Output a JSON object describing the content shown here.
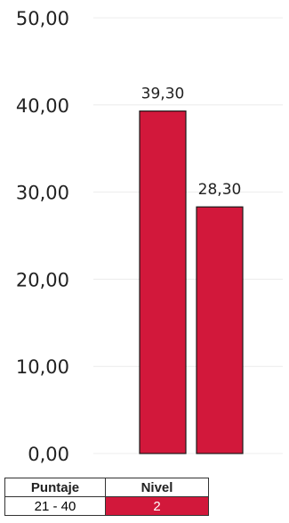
{
  "chart_data": {
    "type": "bar",
    "categories": [
      "",
      ""
    ],
    "series": [
      {
        "values": [
          39.3,
          28.3
        ]
      }
    ],
    "value_labels": [
      "39,30",
      "28,30"
    ],
    "y_ticks": [
      "0,00",
      "10,00",
      "20,00",
      "30,00",
      "40,00",
      "50,00"
    ],
    "y_tick_values": [
      0,
      10,
      20,
      30,
      40,
      50
    ],
    "ylim": [
      0,
      50
    ],
    "grid": true,
    "bar_color": "#d2183b",
    "title": "",
    "xlabel": "",
    "ylabel": ""
  },
  "legend_table": {
    "headers": [
      "Puntaje",
      "Nivel"
    ],
    "rows": [
      {
        "range": "21 - 40",
        "level": "2",
        "level_color": "#d2183b"
      }
    ]
  }
}
